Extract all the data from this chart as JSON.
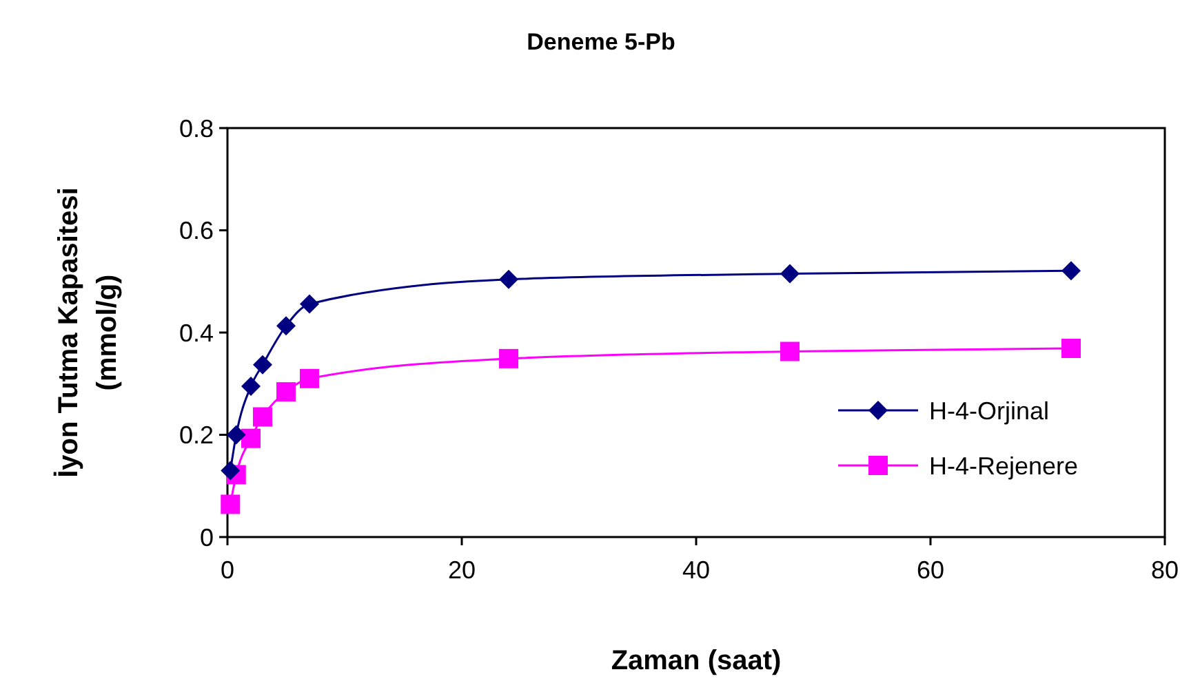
{
  "chart_data": {
    "type": "line",
    "title": "Deneme 5-Pb",
    "xlabel": "Zaman (saat)",
    "ylabel": "İyon Tutma Kapasitesi (mmol/g)",
    "xlim": [
      0,
      80
    ],
    "xticks": [
      0,
      20,
      40,
      60,
      80
    ],
    "ylim": [
      0,
      0.8
    ],
    "yticks": [
      {
        "value": 0,
        "label": "0"
      },
      {
        "value": 0.2,
        "label": "0.2"
      },
      {
        "value": 0.4,
        "label": "0.4"
      },
      {
        "value": 0.6,
        "label": "0.6"
      },
      {
        "value": 0.8,
        "label": "0.8"
      }
    ],
    "grid": false,
    "legend": "bottom right",
    "x": [
      0.25,
      0.75,
      2,
      3,
      5,
      7,
      24,
      48,
      72
    ],
    "series": [
      {
        "name": "H-4-Orjinal",
        "color": "#000080",
        "marker": "diamond",
        "values": [
          0.13,
          0.2,
          0.295,
          0.337,
          0.413,
          0.456,
          0.504,
          0.515,
          0.521
        ]
      },
      {
        "name": "H-4-Rejenere",
        "color": "#ff00ff",
        "marker": "square",
        "values": [
          0.064,
          0.122,
          0.193,
          0.235,
          0.284,
          0.31,
          0.349,
          0.363,
          0.369
        ]
      }
    ]
  }
}
